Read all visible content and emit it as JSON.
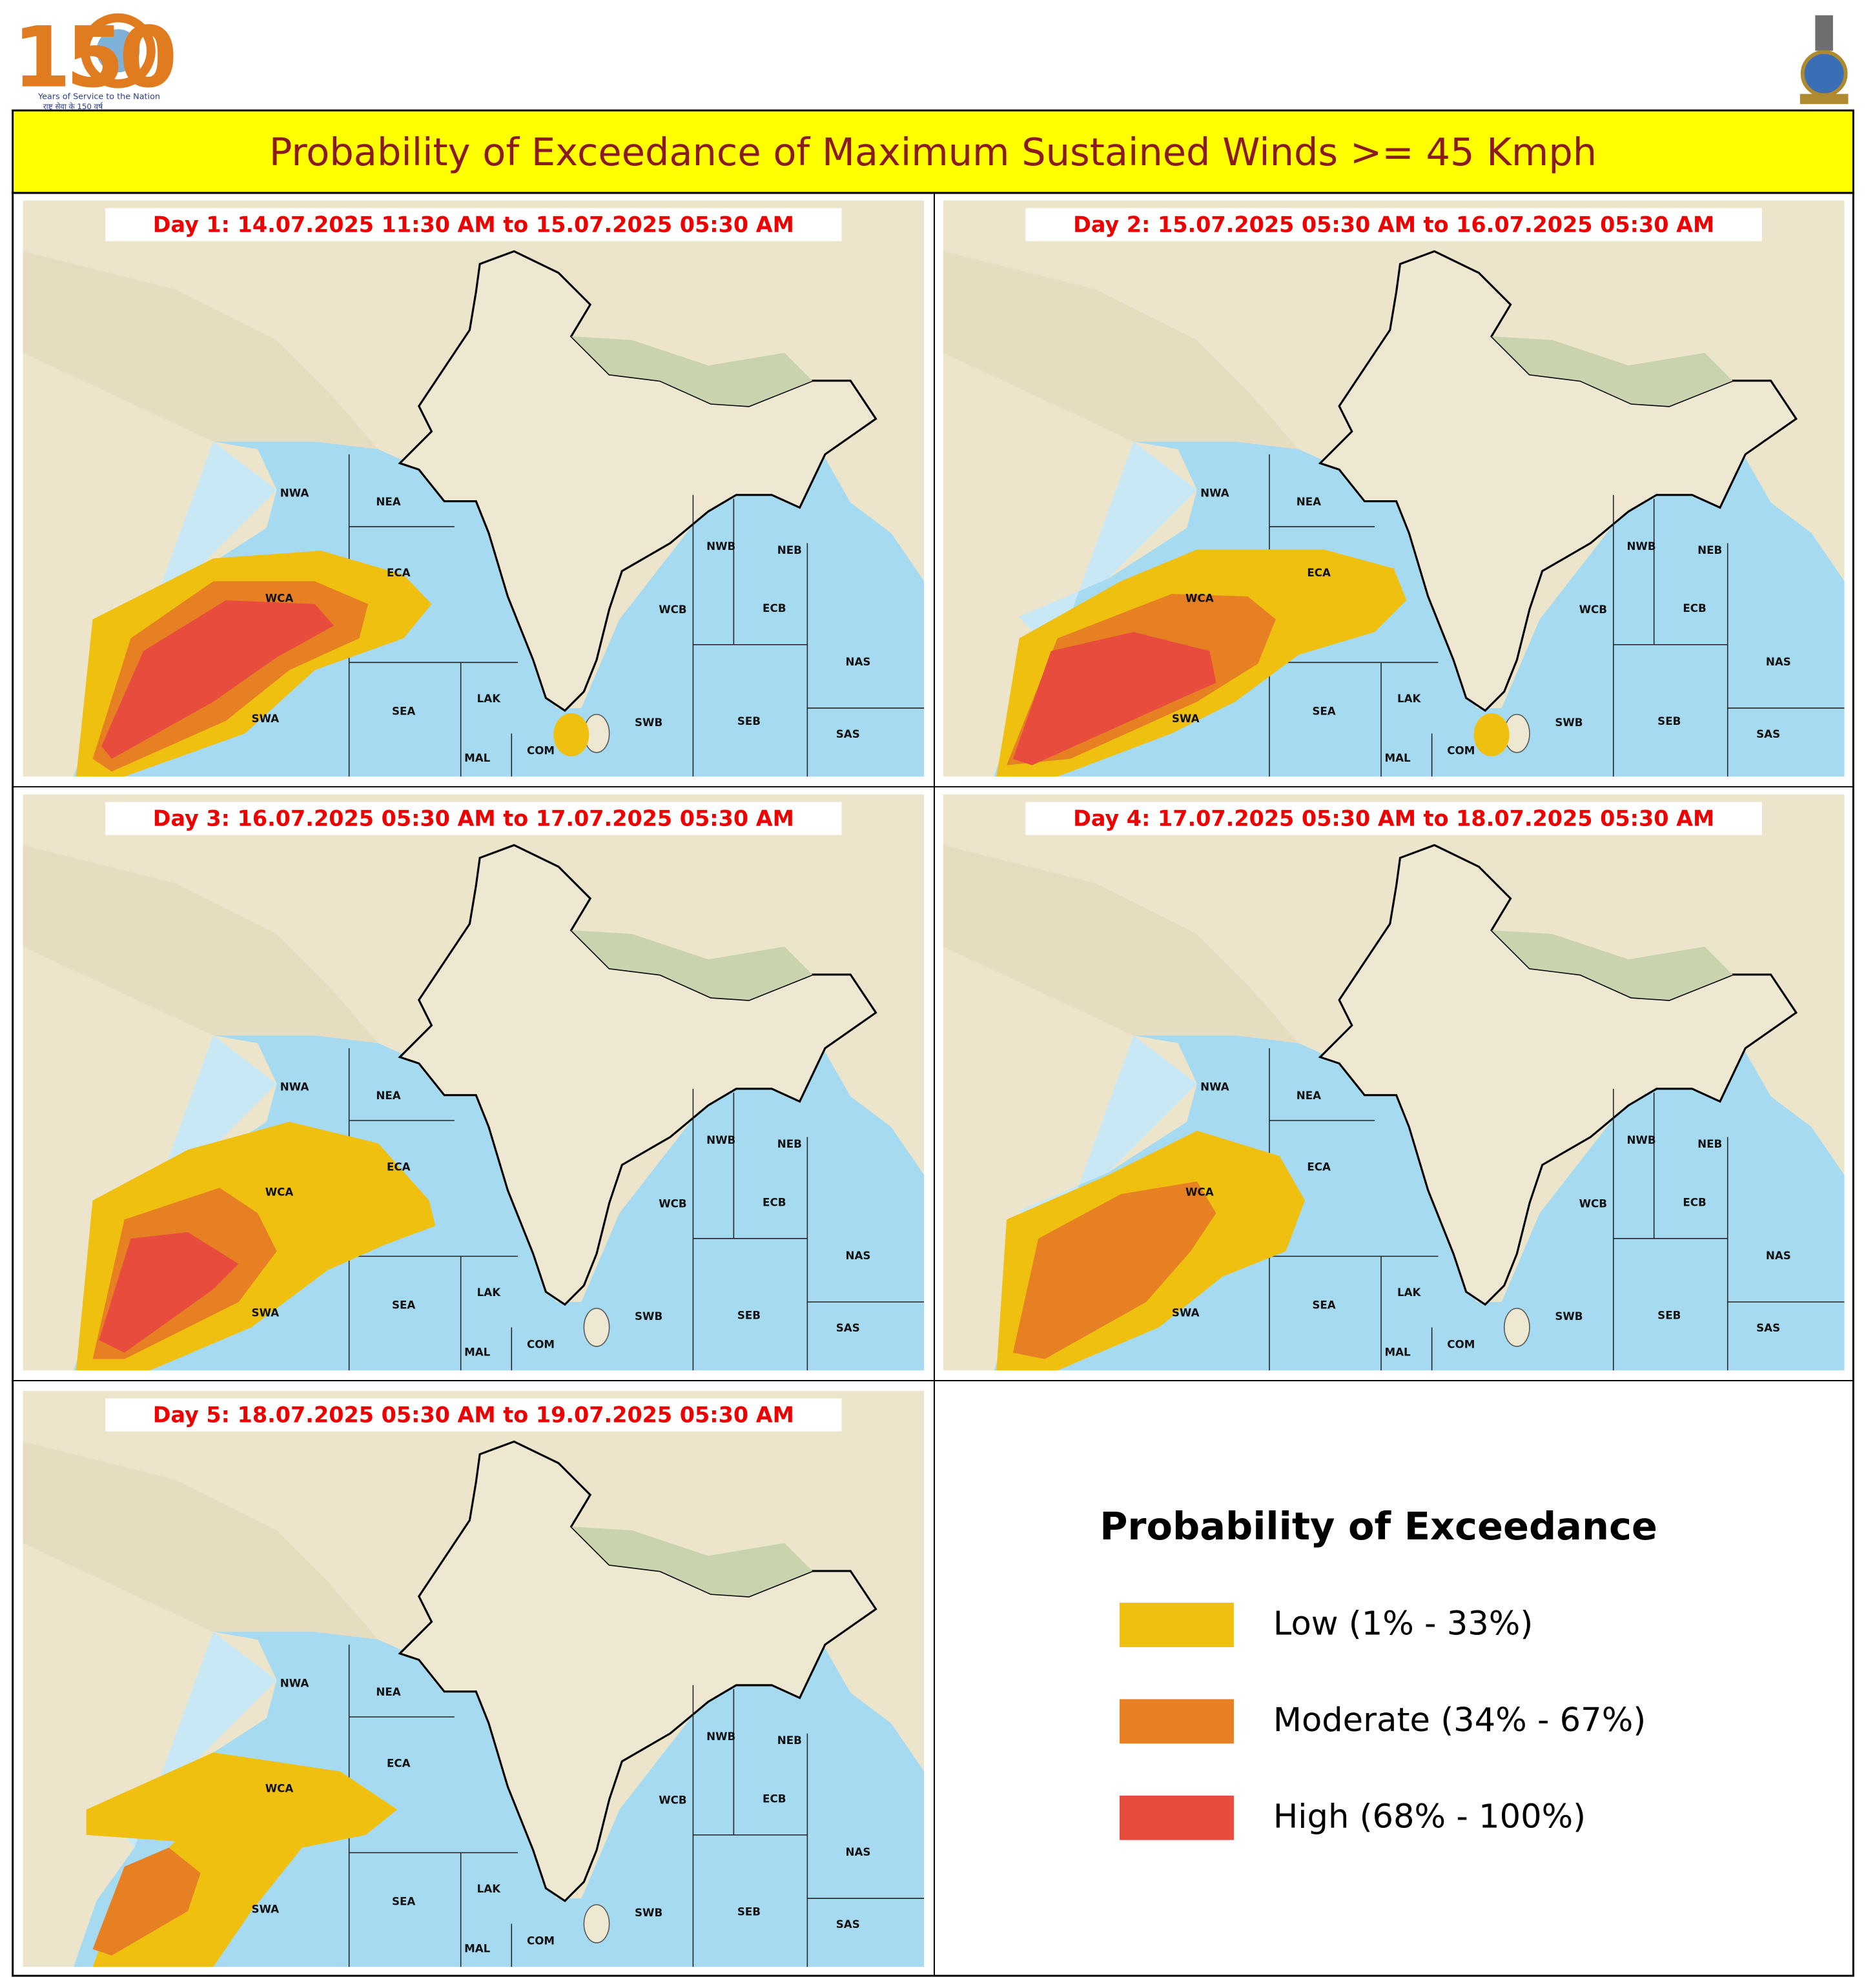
{
  "logo": {
    "number": "150",
    "tagline": "Years of Service to the Nation",
    "tagline_hindi": "राष्ट्र सेवा के 150 वर्ष"
  },
  "title": "Probability of Exceedance of Maximum Sustained Winds >= 45 Kmph",
  "regions": [
    "NWA",
    "NEA",
    "ECA",
    "WCA",
    "SWA",
    "SEA",
    "LAK",
    "MAL",
    "COM",
    "SWB",
    "SEB",
    "WCB",
    "ECB",
    "NWB",
    "NEB",
    "NAS",
    "SAS"
  ],
  "panels": [
    {
      "title": "Day 1: 14.07.2025 11:30 AM to 15.07.2025 05:30 AM"
    },
    {
      "title": "Day 2: 15.07.2025 05:30 AM to 16.07.2025 05:30 AM"
    },
    {
      "title": "Day 3: 16.07.2025 05:30 AM to 17.07.2025 05:30 AM"
    },
    {
      "title": "Day 4: 17.07.2025 05:30 AM to 18.07.2025 05:30 AM"
    },
    {
      "title": "Day 5: 18.07.2025 05:30 AM to 19.07.2025 05:30 AM"
    }
  ],
  "legend": {
    "title": "Probability of Exceedance",
    "items": [
      {
        "label": "Low (1% - 33%)",
        "color": "#f0c010"
      },
      {
        "label": "Moderate (34% - 67%)",
        "color": "#e68023"
      },
      {
        "label": "High (68% - 100%)",
        "color": "#e84c3d"
      }
    ]
  }
}
